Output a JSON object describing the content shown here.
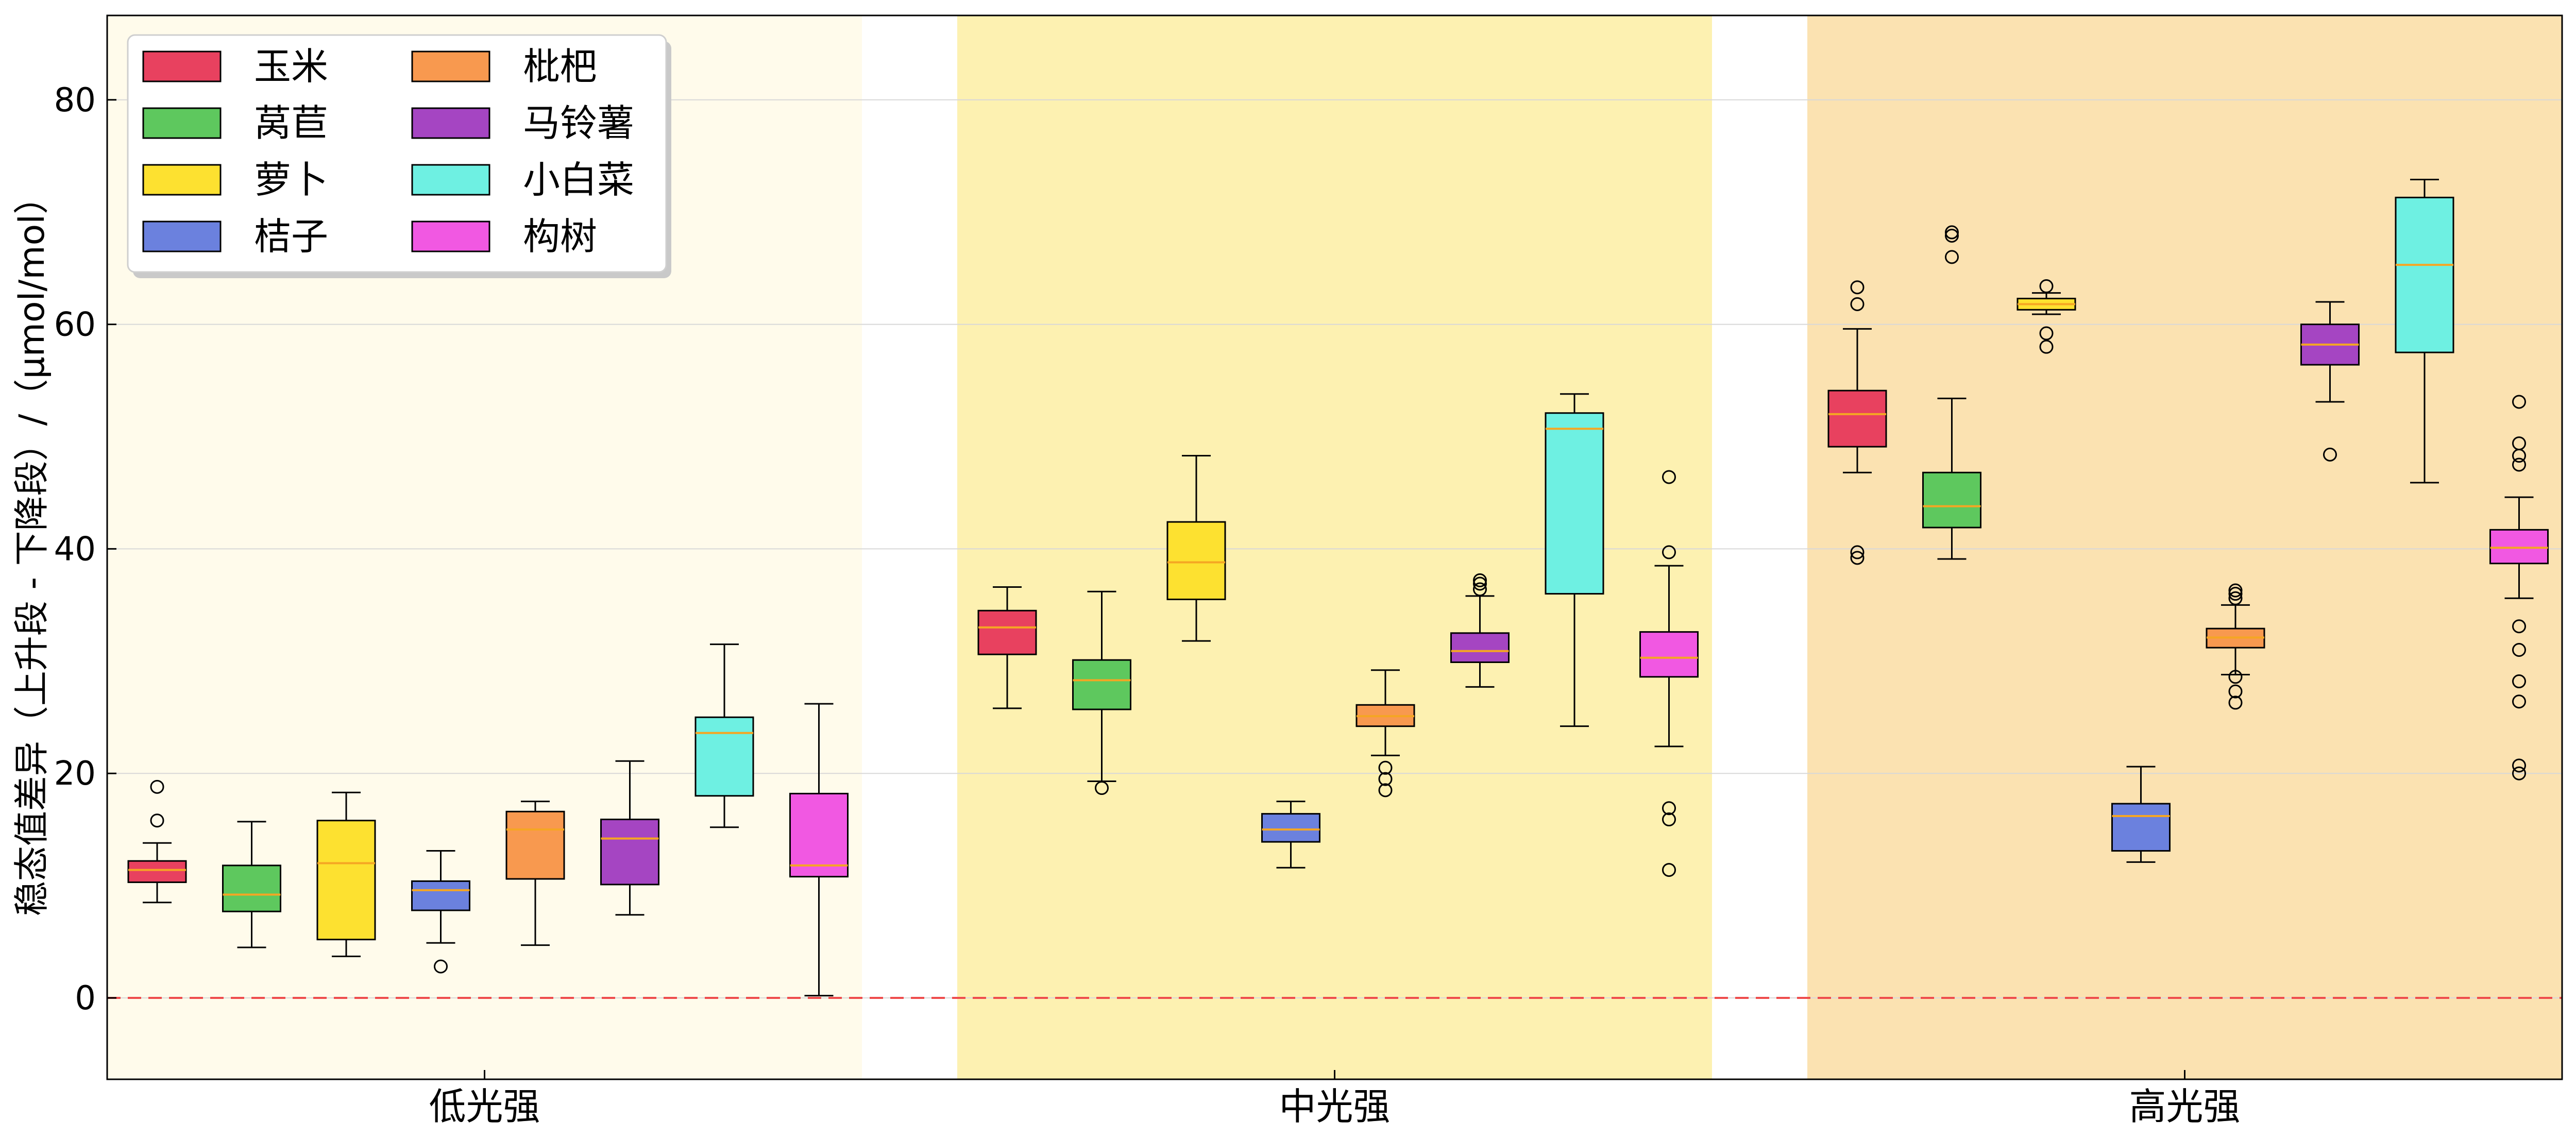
{
  "chart_data": {
    "type": "box",
    "title": "",
    "xlabel": "",
    "ylabel": "稳态值差异（上升段 - 下降段）/（μmol/mol）",
    "ylim": [
      -7,
      87
    ],
    "yticks": [
      0,
      20,
      40,
      60,
      80
    ],
    "grid": "horizontal",
    "reference_line": {
      "y": 0,
      "color": "#ee4c4c",
      "style": "dashed"
    },
    "legend_position": "top-left",
    "categories": [
      "低光强",
      "中光强",
      "高光强"
    ],
    "category_backgrounds": [
      "#fffbeb",
      "#fdf1b1",
      "#fbe2b1"
    ],
    "median_color": "#f5a623",
    "series": [
      {
        "name": "玉米",
        "color": "#e8415f",
        "boxes": [
          {
            "whislo": 8.5,
            "q1": 10.3,
            "med": 11.4,
            "q3": 12.2,
            "whishi": 13.8,
            "fliers": [
              15.8,
              18.8
            ]
          },
          {
            "whislo": 25.8,
            "q1": 30.6,
            "med": 33.0,
            "q3": 34.5,
            "whishi": 36.6,
            "fliers": []
          },
          {
            "whislo": 46.8,
            "q1": 49.1,
            "med": 52.0,
            "q3": 54.1,
            "whishi": 59.6,
            "fliers": [
              61.8,
              63.3,
              39.2,
              39.7
            ]
          }
        ]
      },
      {
        "name": "莴苣",
        "color": "#5ec85e",
        "boxes": [
          {
            "whislo": 4.5,
            "q1": 7.7,
            "med": 9.2,
            "q3": 11.8,
            "whishi": 15.7,
            "fliers": []
          },
          {
            "whislo": 19.3,
            "q1": 25.7,
            "med": 28.3,
            "q3": 30.1,
            "whishi": 36.2,
            "fliers": [
              18.7
            ]
          },
          {
            "whislo": 39.1,
            "q1": 41.9,
            "med": 43.8,
            "q3": 46.8,
            "whishi": 53.4,
            "fliers": [
              66.0,
              67.9,
              68.2
            ]
          }
        ]
      },
      {
        "name": "萝卜",
        "color": "#fde130",
        "boxes": [
          {
            "whislo": 3.7,
            "q1": 5.2,
            "med": 12.0,
            "q3": 15.8,
            "whishi": 18.3,
            "fliers": []
          },
          {
            "whislo": 31.8,
            "q1": 35.5,
            "med": 38.8,
            "q3": 42.4,
            "whishi": 48.3,
            "fliers": []
          },
          {
            "whislo": 60.9,
            "q1": 61.3,
            "med": 61.8,
            "q3": 62.3,
            "whishi": 62.8,
            "fliers": [
              63.4,
              59.2,
              58.0
            ]
          }
        ]
      },
      {
        "name": "桔子",
        "color": "#6b81de",
        "boxes": [
          {
            "whislo": 4.9,
            "q1": 7.8,
            "med": 9.6,
            "q3": 10.4,
            "whishi": 13.1,
            "fliers": [
              2.8
            ]
          },
          {
            "whislo": 11.6,
            "q1": 13.9,
            "med": 15.0,
            "q3": 16.4,
            "whishi": 17.5,
            "fliers": []
          },
          {
            "whislo": 12.1,
            "q1": 13.1,
            "med": 16.2,
            "q3": 17.3,
            "whishi": 20.6,
            "fliers": []
          }
        ]
      },
      {
        "name": "枇杷",
        "color": "#f8994f",
        "boxes": [
          {
            "whislo": 4.7,
            "q1": 10.6,
            "med": 15.0,
            "q3": 16.6,
            "whishi": 17.5,
            "fliers": []
          },
          {
            "whislo": 21.6,
            "q1": 24.2,
            "med": 25.1,
            "q3": 26.1,
            "whishi": 29.2,
            "fliers": [
              20.5,
              19.5,
              18.5
            ]
          },
          {
            "whislo": 28.8,
            "q1": 31.2,
            "med": 32.1,
            "q3": 32.9,
            "whishi": 35.0,
            "fliers": [
              35.6,
              36.0,
              36.3,
              28.6,
              27.3,
              26.3
            ]
          }
        ]
      },
      {
        "name": "马铃薯",
        "color": "#a545c2",
        "boxes": [
          {
            "whislo": 7.4,
            "q1": 10.1,
            "med": 14.2,
            "q3": 15.9,
            "whishi": 21.1,
            "fliers": []
          },
          {
            "whislo": 27.7,
            "q1": 29.9,
            "med": 30.9,
            "q3": 32.5,
            "whishi": 35.8,
            "fliers": [
              36.4,
              36.9,
              37.2
            ]
          },
          {
            "whislo": 53.1,
            "q1": 56.4,
            "med": 58.2,
            "q3": 60.0,
            "whishi": 62.0,
            "fliers": [
              48.4
            ]
          }
        ]
      },
      {
        "name": "小白菜",
        "color": "#6ef0e2",
        "boxes": [
          {
            "whislo": 15.2,
            "q1": 18.0,
            "med": 23.6,
            "q3": 25.0,
            "whishi": 31.5,
            "fliers": []
          },
          {
            "whislo": 24.2,
            "q1": 36.0,
            "med": 50.7,
            "q3": 52.1,
            "whishi": 53.8,
            "fliers": []
          },
          {
            "whislo": 45.9,
            "q1": 57.5,
            "med": 65.3,
            "q3": 71.3,
            "whishi": 72.9,
            "fliers": []
          }
        ]
      },
      {
        "name": "构树",
        "color": "#f158e2",
        "boxes": [
          {
            "whislo": 0.2,
            "q1": 10.8,
            "med": 11.8,
            "q3": 18.2,
            "whishi": 26.2,
            "fliers": []
          },
          {
            "whislo": 22.4,
            "q1": 28.6,
            "med": 30.3,
            "q3": 32.6,
            "whishi": 38.5,
            "fliers": [
              39.7,
              46.4,
              16.9,
              15.9,
              11.4
            ]
          },
          {
            "whislo": 35.6,
            "q1": 38.7,
            "med": 40.1,
            "q3": 41.7,
            "whishi": 44.6,
            "fliers": [
              47.5,
              48.3,
              49.4,
              53.1,
              33.1,
              31.0,
              28.2,
              26.4,
              20.7,
              20.0
            ]
          }
        ]
      }
    ]
  }
}
